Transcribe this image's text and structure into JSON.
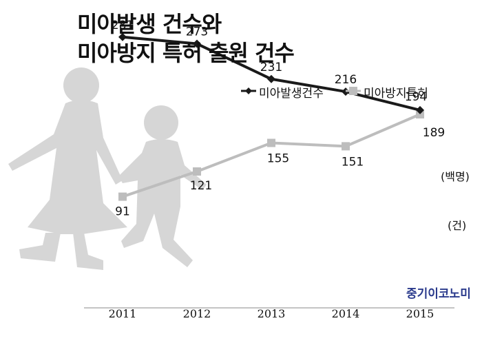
{
  "title": [
    "미아발생 건수와",
    "미아방지 특허 출원 건수"
  ],
  "brand": "중기이코노미",
  "chart_data": {
    "type": "line",
    "x": [
      "2011",
      "2012",
      "2013",
      "2014",
      "2015"
    ],
    "series": [
      {
        "name": "미아발생건수",
        "values": [
          281,
          273,
          231,
          216,
          194
        ],
        "unit": "(백명)",
        "color": "#1a1a1a",
        "marker": "diamond"
      },
      {
        "name": "미아방지특허",
        "values": [
          91,
          121,
          155,
          151,
          189
        ],
        "unit": "(건)",
        "color": "#bdbdbd",
        "marker": "square"
      }
    ],
    "legend_position": "top-right",
    "grid": false
  },
  "colors": {
    "silhouette": "#d6d6d6",
    "axis": "#888888",
    "brand": "#2a3a8c"
  }
}
